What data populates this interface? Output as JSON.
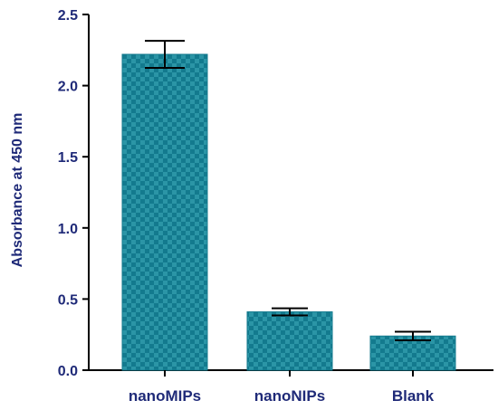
{
  "chart_data": {
    "type": "bar",
    "categories": [
      "nanoMIPs",
      "nanoNIPs",
      "Blank"
    ],
    "values": [
      2.22,
      0.41,
      0.24
    ],
    "errors": [
      0.095,
      0.025,
      0.03
    ],
    "ylabel": "Absorbance at 450 nm",
    "xlabel": "",
    "ylim": [
      0,
      2.5
    ],
    "yticks": [
      0.0,
      0.5,
      1.0,
      1.5,
      2.0,
      2.5
    ],
    "ytick_labels": [
      "0.0",
      "0.5",
      "1.0",
      "1.5",
      "2.0",
      "2.5"
    ],
    "grid": false,
    "bar_color": "#137a8e",
    "bar_pattern_color": "#2b95a6",
    "axis_color": "#000000",
    "label_color": "#1f2a78"
  }
}
